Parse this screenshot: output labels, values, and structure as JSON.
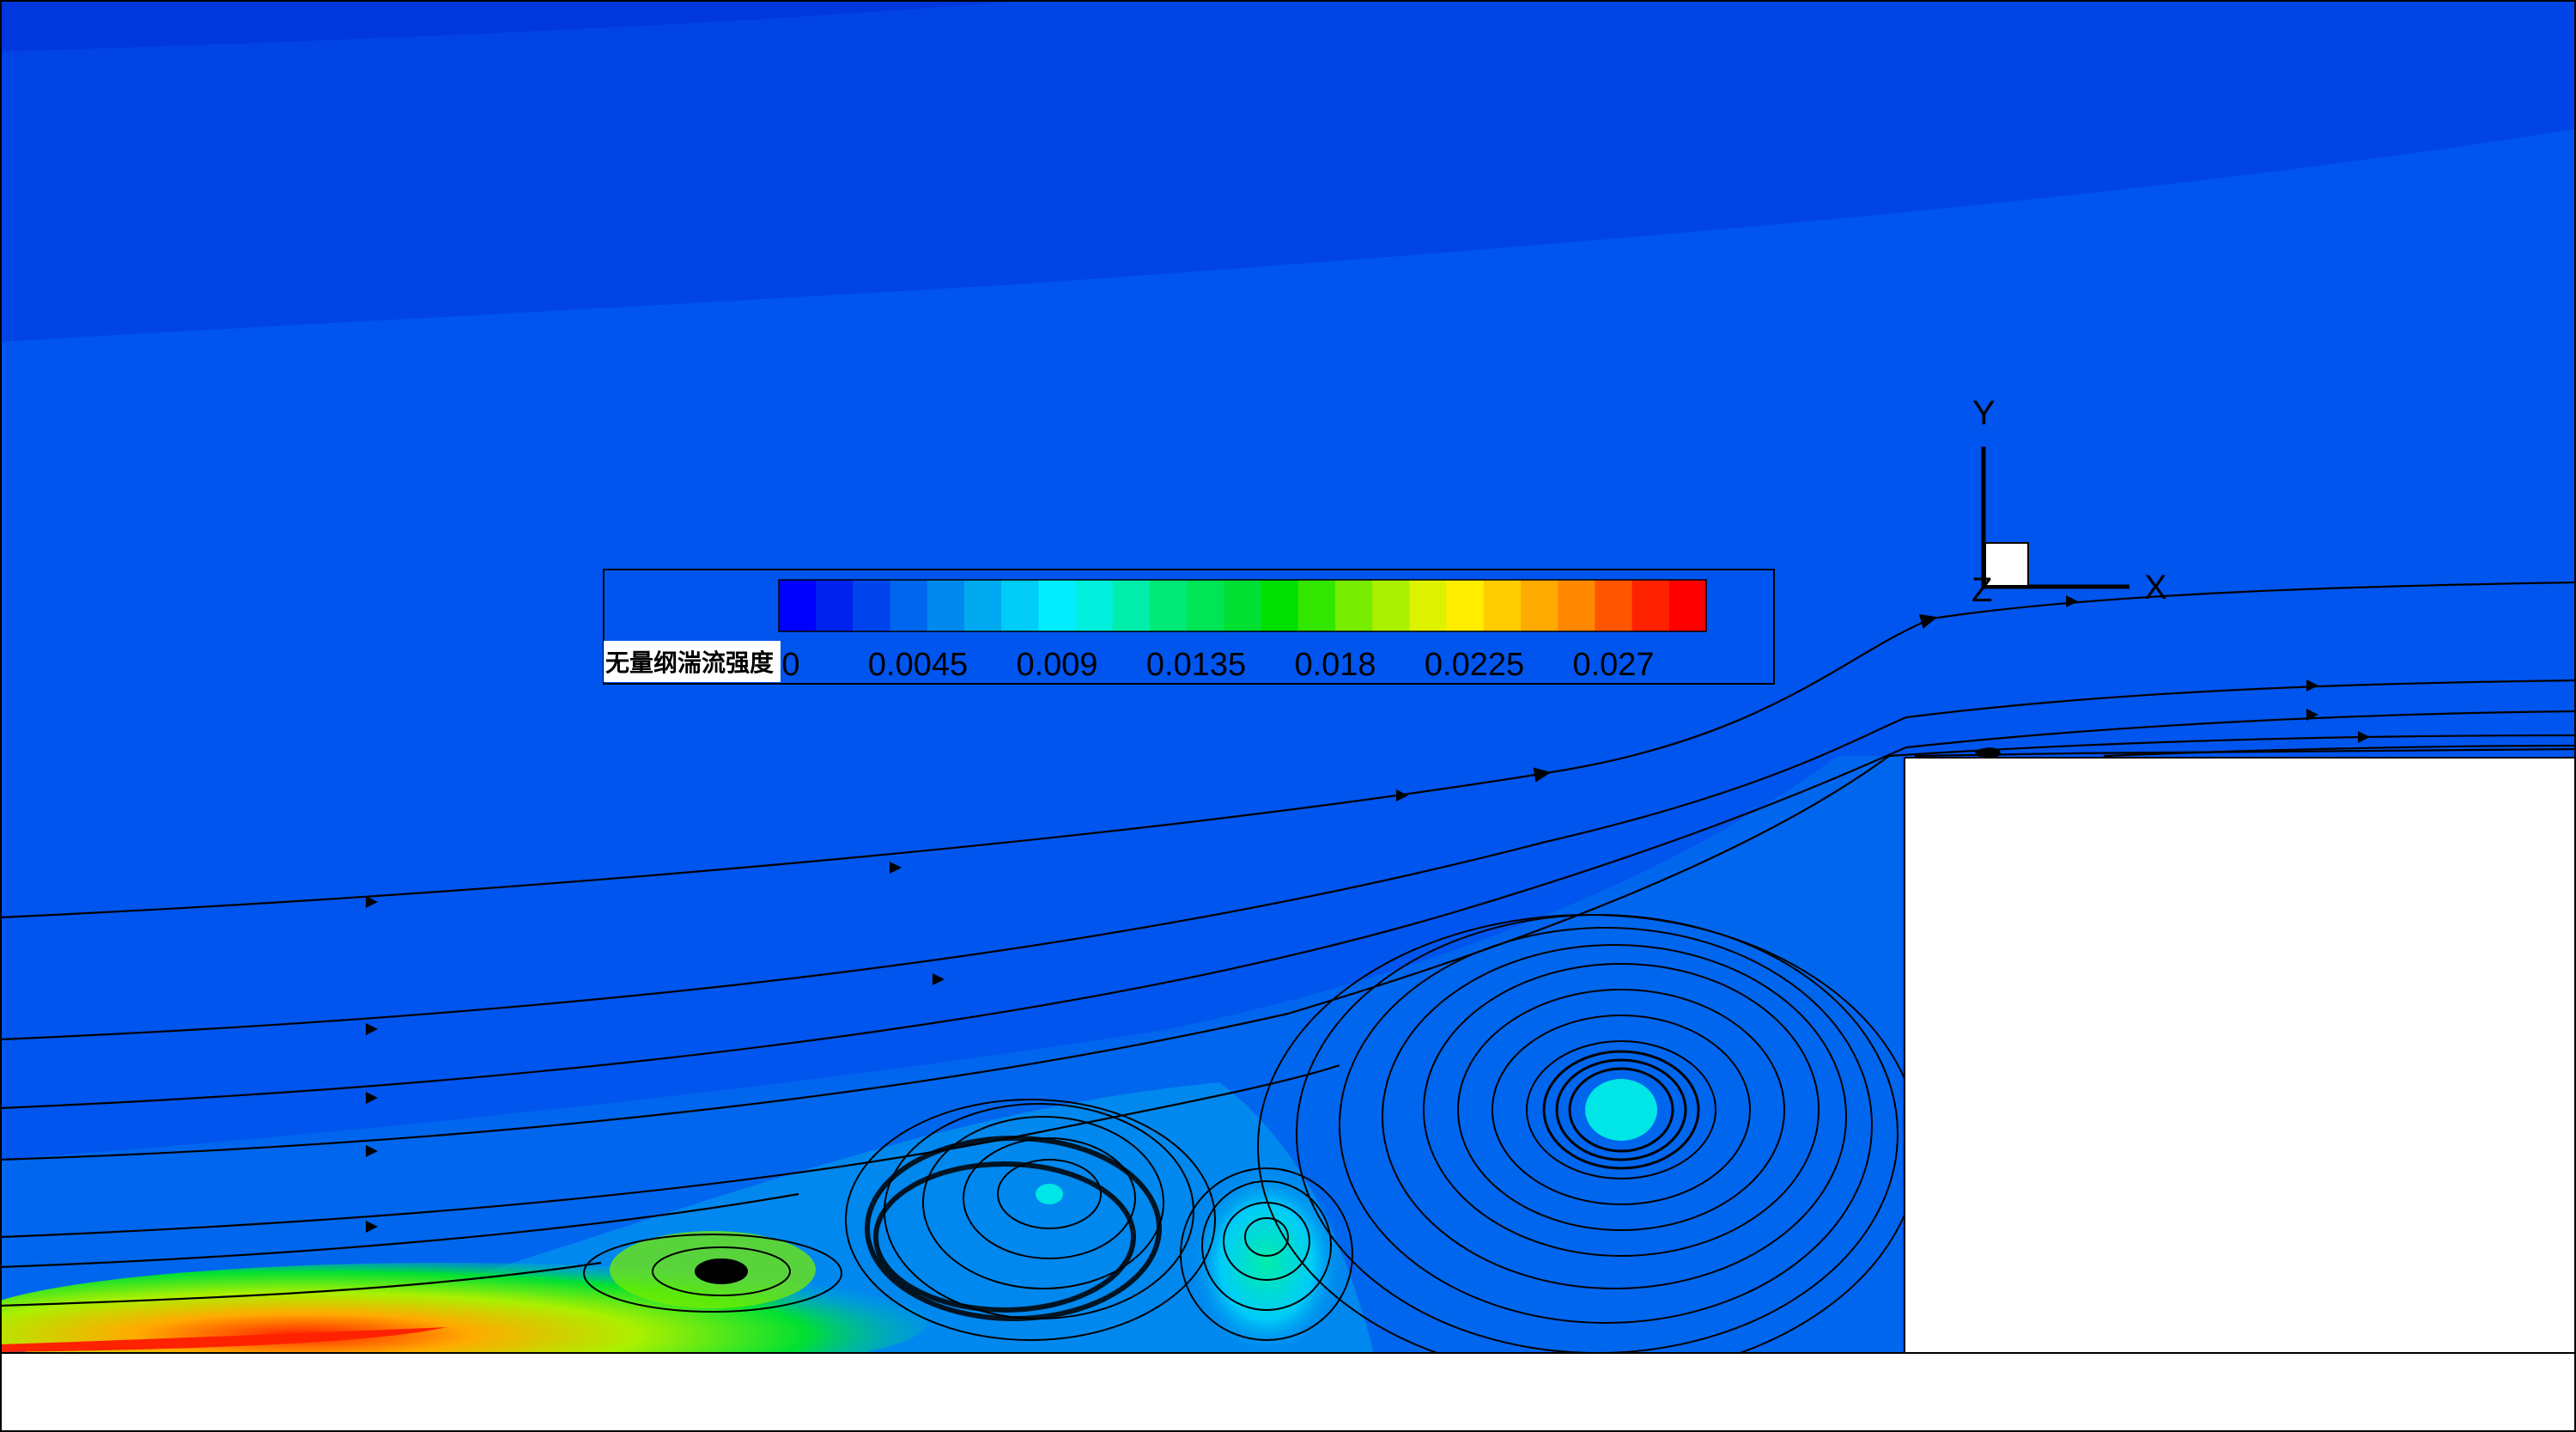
{
  "chart_data": {
    "type": "heatmap",
    "title": "",
    "colorbar": {
      "title": "无量纲湍流强度",
      "tick_values": [
        0,
        0.0045,
        0.009,
        0.0135,
        0.018,
        0.0225,
        0.027
      ],
      "tick_labels": [
        "0",
        "0.0045",
        "0.009",
        "0.0135",
        "0.018",
        "0.0225",
        "0.027"
      ],
      "range": [
        0,
        0.03
      ],
      "levels": 21,
      "colors": [
        "#0000ff",
        "#0022ee",
        "#0044ee",
        "#0066ee",
        "#0088ee",
        "#00aaf0",
        "#00ccf8",
        "#00eeff",
        "#00eedd",
        "#00eeaa",
        "#00e877",
        "#00e555",
        "#00e033",
        "#00e000",
        "#33e600",
        "#77ec00",
        "#aaf000",
        "#ddf200",
        "#ffee00",
        "#ffcc00",
        "#ffaa00",
        "#ff8800",
        "#ff5500",
        "#ff2200",
        "#ff0000"
      ],
      "placement": "center"
    },
    "field": {
      "background_color": "#0055ee",
      "upper_region_color": "#0044e6",
      "vortex_core_color": "#00e5e5",
      "max_region": "near bottom-left wall",
      "streamlines": "black, with arrows, flowing left to right over a forward-facing step"
    },
    "axes_triad": {
      "x_label": "X",
      "y_label": "Y",
      "z_label": "Z"
    }
  }
}
